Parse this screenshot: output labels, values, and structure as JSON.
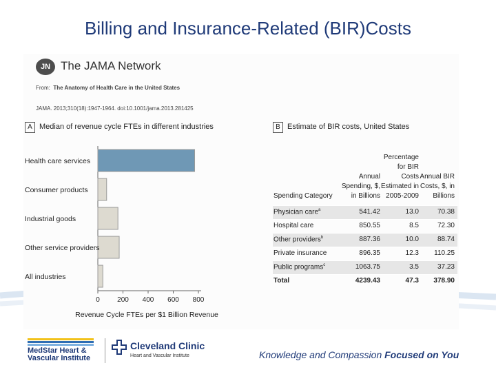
{
  "slide": {
    "title": "Billing and Insurance-Related (BIR)Costs"
  },
  "jama": {
    "logo_text": "JN",
    "network_name": "The JAMA Network",
    "from_label": "From:",
    "article_title": "The Anatomy of Health Care in the United States",
    "citation": "JAMA. 2013;310(18):1947-1964. doi:10.1001/jama.2013.281425"
  },
  "panel_a": {
    "letter": "A",
    "title": "Median of revenue cycle FTEs in different industries"
  },
  "panel_b": {
    "letter": "B",
    "title": "Estimate of BIR costs, United States"
  },
  "chart_data": {
    "type": "bar",
    "orientation": "horizontal",
    "title": "Median of revenue cycle FTEs in different industries",
    "categories": [
      "Health care services",
      "Consumer products",
      "Industrial goods",
      "Other service providers",
      "All industries"
    ],
    "values": [
      770,
      70,
      160,
      170,
      40
    ],
    "xlabel": "Revenue Cycle FTEs per $1 Billion Revenue",
    "ylabel": "",
    "xlim": [
      0,
      850
    ],
    "xticks": [
      "0",
      "200",
      "400",
      "600",
      "800"
    ],
    "colors": {
      "highlight": "#6f98b5",
      "other": "#dddad0",
      "edge": "#9a9a9a"
    }
  },
  "table": {
    "headers": [
      "Spending Category",
      "Annual Spending, $, in Billions",
      "Percentage for BIR Costs Estimated in 2005-2009",
      "Annual BIR Costs, $, in Billions"
    ],
    "rows": [
      {
        "category": "Physician care",
        "mark": "a",
        "spending": "541.42",
        "pct": "13.0",
        "bir": "70.38"
      },
      {
        "category": "Hospital care",
        "mark": "",
        "spending": "850.55",
        "pct": "8.5",
        "bir": "72.30"
      },
      {
        "category": "Other providers",
        "mark": "b",
        "spending": "887.36",
        "pct": "10.0",
        "bir": "88.74"
      },
      {
        "category": "Private insurance",
        "mark": "",
        "spending": "896.35",
        "pct": "12.3",
        "bir": "110.25"
      },
      {
        "category": "Public programs",
        "mark": "c",
        "spending": "1063.75",
        "pct": "3.5",
        "bir": "37.23"
      },
      {
        "category": "Total",
        "mark": "",
        "spending": "4239.43",
        "pct": "47.3",
        "bir": "378.90"
      }
    ]
  },
  "footer": {
    "medstar_line1": "MedStar Heart &",
    "medstar_line2": "Vascular Institute",
    "cc_name": "Cleveland Clinic",
    "cc_sub": "Heart and Vascular Institute",
    "tagline_regular": "Knowledge and Compassion",
    "tagline_bold": "Focused on You"
  },
  "colors": {
    "title": "#1f3a78",
    "medstar_yellow": "#f2c21b",
    "medstar_blue": "#2e6db4",
    "cc_green": "#4e9a3d"
  }
}
